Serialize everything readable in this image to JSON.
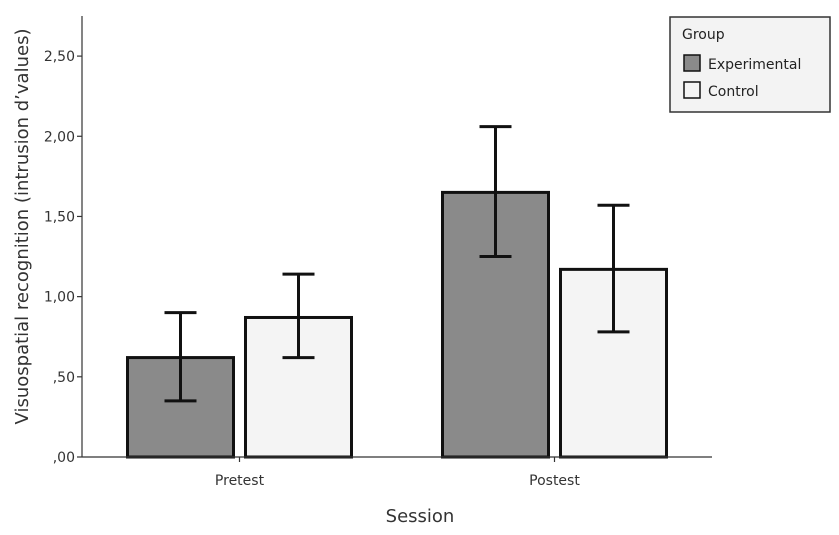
{
  "chart_data": {
    "type": "bar",
    "categories": [
      "Pretest",
      "Postest"
    ],
    "series": [
      {
        "name": "Experimental",
        "values": [
          0.62,
          1.65
        ],
        "err_low": [
          0.35,
          1.25
        ],
        "err_high": [
          0.9,
          2.06
        ],
        "color": "#8a8a8a"
      },
      {
        "name": "Control",
        "values": [
          0.87,
          1.17
        ],
        "err_low": [
          0.62,
          0.78
        ],
        "err_high": [
          1.14,
          1.57
        ],
        "color": "#f4f4f4"
      }
    ],
    "title": "",
    "xlabel": "Session",
    "ylabel": "Visuospatial recognition (intrusion d’values)",
    "ylim": [
      0,
      2.75
    ],
    "yticks": [
      0,
      0.5,
      1.0,
      1.5,
      2.0,
      2.5
    ],
    "ytick_labels": [
      ",00",
      ",50",
      "1,00",
      "1,50",
      "2,00",
      "2,50"
    ],
    "legend": {
      "title": "Group",
      "position": "top-right"
    },
    "grid": false
  }
}
